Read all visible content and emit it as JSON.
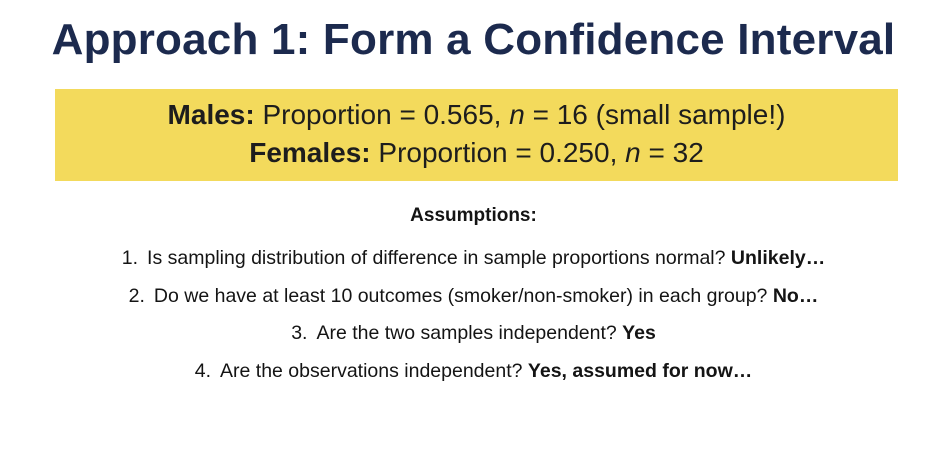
{
  "title": "Approach 1: Form a Confidence Interval",
  "summary": {
    "males": {
      "label": "Males:",
      "proportion_text": "Proportion = 0.565,",
      "n_symbol": "n",
      "n_text": "= 16 (small sample!)"
    },
    "females": {
      "label": "Females:",
      "proportion_text": "Proportion = 0.250,",
      "n_symbol": "n",
      "n_text": "= 32"
    },
    "colors": {
      "highlight_background": "#f3da5c",
      "title_color": "#1c2a4e"
    }
  },
  "assumptions": {
    "heading": "Assumptions:",
    "items": [
      {
        "number": "1.",
        "question": "Is sampling distribution of difference in sample proportions normal?",
        "answer": "Unlikely…"
      },
      {
        "number": "2.",
        "question": "Do we have at least 10 outcomes (smoker/non-smoker) in each group?",
        "answer": "No…"
      },
      {
        "number": "3.",
        "question": "Are the two samples independent?",
        "answer": "Yes"
      },
      {
        "number": "4.",
        "question": "Are the observations independent?",
        "answer": "Yes, assumed for now…"
      }
    ]
  }
}
